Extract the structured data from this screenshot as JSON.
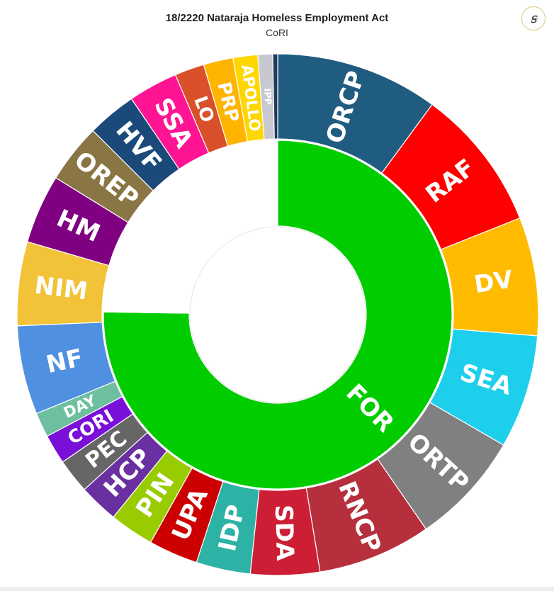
{
  "header": {
    "title": "18/2220 Nataraja Homeless Employment Act",
    "subtitle": "CoRI",
    "logo_glyph": "ꞩ"
  },
  "chart_data": {
    "type": "sunburst",
    "title": "18/2220 Nataraja Homeless Employment Act",
    "subtitle": "CoRI",
    "inner_ring": [
      {
        "name": "FOR",
        "value": 301,
        "color": "#00cc00"
      },
      {
        "name": "",
        "value": 99,
        "color": "#ffffff"
      }
    ],
    "outer_ring": [
      {
        "name": "ORCP",
        "value": 33,
        "color": "#1f5c80"
      },
      {
        "name": "RAF",
        "value": 29,
        "color": "#ff0000"
      },
      {
        "name": "DV",
        "value": 24,
        "color": "#ffbb00"
      },
      {
        "name": "SEA",
        "value": 23,
        "color": "#1ecfec"
      },
      {
        "name": "ORTP",
        "value": 23,
        "color": "#808080"
      },
      {
        "name": "RNCP",
        "value": 23,
        "color": "#b52f3c"
      },
      {
        "name": "SDA",
        "value": 14,
        "color": "#cc1f35"
      },
      {
        "name": "IDP",
        "value": 11,
        "color": "#2db3a6"
      },
      {
        "name": "UPA",
        "value": 10,
        "color": "#cc0000"
      },
      {
        "name": "PIN",
        "value": 9,
        "color": "#99cc00"
      },
      {
        "name": "HCP",
        "value": 8,
        "color": "#6a2fa0"
      },
      {
        "name": "PEC",
        "value": 7,
        "color": "#666666"
      },
      {
        "name": "CORI",
        "value": 6,
        "color": "#7a0fd8"
      },
      {
        "name": "DAY",
        "value": 5,
        "color": "#6dbf9f"
      },
      {
        "name": "NF",
        "value": 18,
        "color": "#5090e0"
      },
      {
        "name": "NIM",
        "value": 17,
        "color": "#f2c239"
      },
      {
        "name": "HM",
        "value": 14,
        "color": "#7f0080"
      },
      {
        "name": "OREP",
        "value": 12,
        "color": "#8a7545"
      },
      {
        "name": "HVF",
        "value": 10,
        "color": "#1b4a7a"
      },
      {
        "name": "SSA",
        "value": 10,
        "color": "#ff1493"
      },
      {
        "name": "LO",
        "value": 6,
        "color": "#d9502a"
      },
      {
        "name": "PRP",
        "value": 6,
        "color": "#ffb400"
      },
      {
        "name": "APOLLO",
        "value": 5,
        "color": "#ffd700"
      },
      {
        "name": "IPP",
        "value": 3,
        "color": "#c8c8d0"
      },
      {
        "name": "",
        "value": 1,
        "color": "#1f3a5c"
      }
    ]
  }
}
